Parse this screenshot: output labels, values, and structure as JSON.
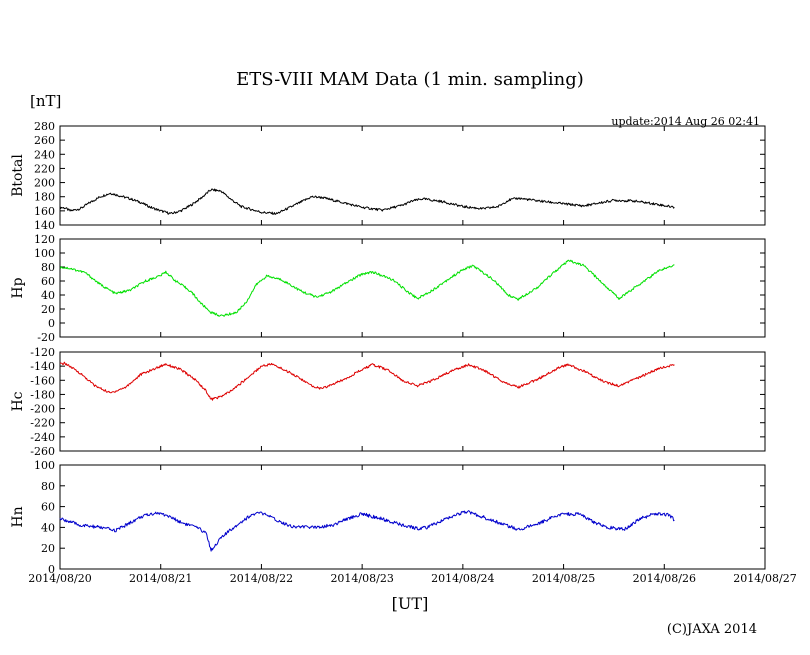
{
  "title": "ETS-VIII MAM Data (1 min. sampling)",
  "unit_label": "[nT]",
  "update_text": "update:2014 Aug 26 02:41",
  "x_axis_label": "[UT]",
  "copyright": "(C)JAXA 2014",
  "chart_data": {
    "type": "line",
    "x_range_days": [
      0,
      7
    ],
    "x_ticks": [
      "2014/08/20",
      "2014/08/21",
      "2014/08/22",
      "2014/08/23",
      "2014/08/24",
      "2014/08/25",
      "2014/08/26",
      "2014/08/27"
    ],
    "panels": [
      {
        "name": "Btotal",
        "color": "#000000",
        "ylim": [
          140,
          280
        ],
        "yticks": [
          140,
          160,
          180,
          200,
          220,
          240,
          260,
          280
        ],
        "points": [
          [
            0,
            165
          ],
          [
            0.05,
            164
          ],
          [
            0.1,
            160
          ],
          [
            0.2,
            163
          ],
          [
            0.3,
            172
          ],
          [
            0.4,
            180
          ],
          [
            0.5,
            185
          ],
          [
            0.6,
            181
          ],
          [
            0.7,
            177
          ],
          [
            0.8,
            172
          ],
          [
            0.9,
            165
          ],
          [
            1.0,
            160
          ],
          [
            1.1,
            156
          ],
          [
            1.2,
            160
          ],
          [
            1.3,
            168
          ],
          [
            1.4,
            178
          ],
          [
            1.5,
            190
          ],
          [
            1.6,
            188
          ],
          [
            1.7,
            176
          ],
          [
            1.8,
            166
          ],
          [
            1.9,
            162
          ],
          [
            2.0,
            158
          ],
          [
            2.15,
            156
          ],
          [
            2.3,
            166
          ],
          [
            2.5,
            180
          ],
          [
            2.6,
            179
          ],
          [
            2.8,
            172
          ],
          [
            3.0,
            165
          ],
          [
            3.2,
            161
          ],
          [
            3.4,
            168
          ],
          [
            3.5,
            174
          ],
          [
            3.6,
            177
          ],
          [
            3.8,
            173
          ],
          [
            4.0,
            166
          ],
          [
            4.2,
            163
          ],
          [
            4.35,
            166
          ],
          [
            4.45,
            175
          ],
          [
            4.55,
            178
          ],
          [
            4.7,
            175
          ],
          [
            5.0,
            170
          ],
          [
            5.2,
            167
          ],
          [
            5.5,
            175
          ],
          [
            5.7,
            174
          ],
          [
            5.9,
            170
          ],
          [
            6.1,
            165
          ]
        ]
      },
      {
        "name": "Hp",
        "color": "#00e000",
        "ylim": [
          -20,
          120
        ],
        "yticks": [
          -20,
          0,
          20,
          40,
          60,
          80,
          100,
          120
        ],
        "points": [
          [
            0,
            80
          ],
          [
            0.1,
            78
          ],
          [
            0.25,
            72
          ],
          [
            0.4,
            55
          ],
          [
            0.55,
            42
          ],
          [
            0.7,
            47
          ],
          [
            0.85,
            60
          ],
          [
            1.0,
            68
          ],
          [
            1.05,
            73
          ],
          [
            1.15,
            60
          ],
          [
            1.3,
            45
          ],
          [
            1.4,
            28
          ],
          [
            1.5,
            15
          ],
          [
            1.6,
            10
          ],
          [
            1.75,
            15
          ],
          [
            1.85,
            30
          ],
          [
            1.95,
            55
          ],
          [
            2.05,
            67
          ],
          [
            2.2,
            62
          ],
          [
            2.4,
            45
          ],
          [
            2.55,
            37
          ],
          [
            2.7,
            45
          ],
          [
            2.85,
            58
          ],
          [
            3.0,
            70
          ],
          [
            3.1,
            73
          ],
          [
            3.3,
            62
          ],
          [
            3.45,
            45
          ],
          [
            3.55,
            35
          ],
          [
            3.7,
            47
          ],
          [
            3.85,
            62
          ],
          [
            4.0,
            76
          ],
          [
            4.1,
            82
          ],
          [
            4.3,
            62
          ],
          [
            4.45,
            40
          ],
          [
            4.55,
            34
          ],
          [
            4.75,
            52
          ],
          [
            4.9,
            72
          ],
          [
            5.05,
            89
          ],
          [
            5.2,
            82
          ],
          [
            5.4,
            55
          ],
          [
            5.55,
            35
          ],
          [
            5.75,
            55
          ],
          [
            5.95,
            75
          ],
          [
            6.1,
            83
          ]
        ]
      },
      {
        "name": "Hc",
        "color": "#dd0000",
        "ylim": [
          -260,
          -120
        ],
        "yticks": [
          -260,
          -240,
          -220,
          -200,
          -180,
          -160,
          -140,
          -120
        ],
        "points": [
          [
            0,
            -137
          ],
          [
            0.05,
            -136
          ],
          [
            0.2,
            -150
          ],
          [
            0.35,
            -168
          ],
          [
            0.5,
            -178
          ],
          [
            0.65,
            -170
          ],
          [
            0.8,
            -152
          ],
          [
            1.0,
            -140
          ],
          [
            1.05,
            -137
          ],
          [
            1.2,
            -145
          ],
          [
            1.35,
            -160
          ],
          [
            1.45,
            -175
          ],
          [
            1.5,
            -187
          ],
          [
            1.6,
            -183
          ],
          [
            1.7,
            -175
          ],
          [
            1.85,
            -158
          ],
          [
            2.0,
            -140
          ],
          [
            2.1,
            -137
          ],
          [
            2.3,
            -150
          ],
          [
            2.5,
            -168
          ],
          [
            2.6,
            -172
          ],
          [
            2.8,
            -160
          ],
          [
            3.0,
            -145
          ],
          [
            3.1,
            -138
          ],
          [
            3.25,
            -145
          ],
          [
            3.4,
            -160
          ],
          [
            3.55,
            -168
          ],
          [
            3.7,
            -160
          ],
          [
            3.9,
            -146
          ],
          [
            4.05,
            -138
          ],
          [
            4.2,
            -145
          ],
          [
            4.4,
            -162
          ],
          [
            4.55,
            -170
          ],
          [
            4.75,
            -158
          ],
          [
            4.95,
            -142
          ],
          [
            5.05,
            -138
          ],
          [
            5.2,
            -147
          ],
          [
            5.4,
            -162
          ],
          [
            5.55,
            -168
          ],
          [
            5.75,
            -156
          ],
          [
            5.95,
            -143
          ],
          [
            6.1,
            -138
          ]
        ]
      },
      {
        "name": "Hn",
        "color": "#0000cc",
        "ylim": [
          0,
          100
        ],
        "yticks": [
          0,
          20,
          40,
          60,
          80,
          100
        ],
        "points": [
          [
            0,
            48
          ],
          [
            0.05,
            47
          ],
          [
            0.2,
            42
          ],
          [
            0.4,
            40
          ],
          [
            0.55,
            37
          ],
          [
            0.65,
            42
          ],
          [
            0.8,
            50
          ],
          [
            0.95,
            54
          ],
          [
            1.05,
            52
          ],
          [
            1.2,
            45
          ],
          [
            1.35,
            40
          ],
          [
            1.45,
            35
          ],
          [
            1.5,
            18
          ],
          [
            1.6,
            30
          ],
          [
            1.75,
            42
          ],
          [
            1.9,
            52
          ],
          [
            2.0,
            54
          ],
          [
            2.15,
            47
          ],
          [
            2.3,
            41
          ],
          [
            2.5,
            40
          ],
          [
            2.7,
            42
          ],
          [
            2.9,
            50
          ],
          [
            3.0,
            53
          ],
          [
            3.2,
            48
          ],
          [
            3.4,
            42
          ],
          [
            3.55,
            39
          ],
          [
            3.65,
            40
          ],
          [
            3.8,
            47
          ],
          [
            3.95,
            53
          ],
          [
            4.05,
            55
          ],
          [
            4.2,
            50
          ],
          [
            4.4,
            43
          ],
          [
            4.55,
            38
          ],
          [
            4.7,
            42
          ],
          [
            4.85,
            48
          ],
          [
            5.0,
            53
          ],
          [
            5.15,
            53
          ],
          [
            5.3,
            45
          ],
          [
            5.45,
            40
          ],
          [
            5.6,
            38
          ],
          [
            5.75,
            48
          ],
          [
            5.9,
            53
          ],
          [
            6.05,
            52
          ],
          [
            6.1,
            47
          ]
        ]
      }
    ]
  }
}
